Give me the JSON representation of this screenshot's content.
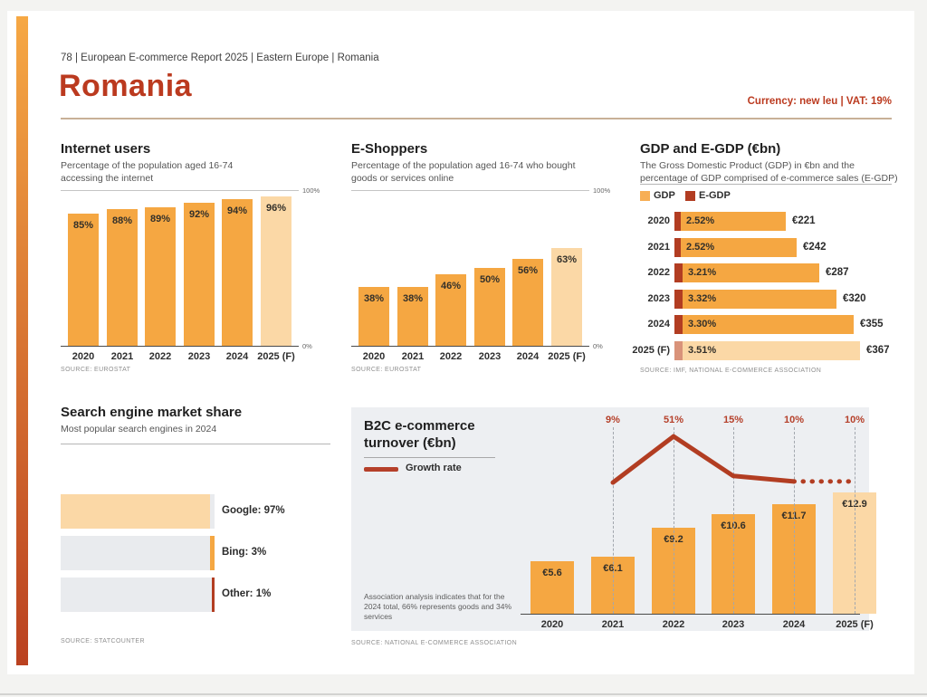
{
  "page": {
    "breadcrumb": "78 | European E-commerce Report 2025 | Eastern Europe | Romania",
    "title": "Romania",
    "currency_vat": "Currency: new leu | VAT: 19%"
  },
  "colors": {
    "accent_orange": "#F5A742",
    "forecast_orange": "#FBD8A6",
    "dark_red": "#B23D22",
    "forecast_red": "#D9937A",
    "panel_bg": "#EDEFF2",
    "gray_bar": "#E9EBEE",
    "title_red": "#BB3A1F"
  },
  "chart_data": [
    {
      "id": "internet_users",
      "type": "bar",
      "title": "Internet users",
      "subtitle": "Percentage of the population aged 16-74 accessing the internet",
      "categories": [
        "2020",
        "2021",
        "2022",
        "2023",
        "2024",
        "2025 (F)"
      ],
      "values": [
        85,
        88,
        89,
        92,
        94,
        96
      ],
      "value_labels": [
        "85%",
        "88%",
        "89%",
        "92%",
        "94%",
        "96%"
      ],
      "ylim": [
        0,
        100
      ],
      "axis_labels": {
        "top": "100%",
        "bottom": "0%"
      },
      "forecast_last": true,
      "grid": false,
      "source": "SOURCE: EUROSTAT"
    },
    {
      "id": "e_shoppers",
      "type": "bar",
      "title": "E-Shoppers",
      "subtitle": "Percentage of the population aged 16-74 who bought goods or services online",
      "categories": [
        "2020",
        "2021",
        "2022",
        "2023",
        "2024",
        "2025 (F)"
      ],
      "values": [
        38,
        38,
        46,
        50,
        56,
        63
      ],
      "value_labels": [
        "38%",
        "38%",
        "46%",
        "50%",
        "56%",
        "63%"
      ],
      "ylim": [
        0,
        100
      ],
      "axis_labels": {
        "top": "100%",
        "bottom": "0%"
      },
      "forecast_last": true,
      "grid": false,
      "source": "SOURCE: EUROSTAT"
    },
    {
      "id": "gdp_egdp",
      "type": "bar",
      "orientation": "horizontal",
      "title": "GDP and E-GDP (€bn)",
      "subtitle": "The Gross Domestic Product (GDP) in €bn and the percentage of GDP comprised of e-commerce sales (E-GDP)",
      "categories": [
        "2020",
        "2021",
        "2022",
        "2023",
        "2024",
        "2025 (F)"
      ],
      "series": [
        {
          "name": "GDP",
          "values": [
            221,
            242,
            287,
            320,
            355,
            367
          ],
          "labels": [
            "€221",
            "€242",
            "€287",
            "€320",
            "€355",
            "€367"
          ]
        },
        {
          "name": "E-GDP",
          "values": [
            2.52,
            2.52,
            3.21,
            3.32,
            3.3,
            3.51
          ],
          "labels": [
            "2.52%",
            "2.52%",
            "3.21%",
            "3.32%",
            "3.30%",
            "3.51%"
          ]
        }
      ],
      "xmax": 367,
      "forecast_last": true,
      "legend_position": "top",
      "source": "SOURCE: IMF, NATIONAL E-COMMERCE ASSOCIATION"
    },
    {
      "id": "search_engine_share",
      "type": "bar",
      "orientation": "horizontal",
      "title": "Search engine market share",
      "subtitle": "Most popular search engines in 2024",
      "categories": [
        "Google",
        "Bing",
        "Other"
      ],
      "values": [
        97,
        3,
        1
      ],
      "labels": [
        "Google: 97%",
        "Bing: 3%",
        "Other: 1%"
      ],
      "xlim": [
        0,
        100
      ],
      "source": "SOURCE: STATCOUNTER"
    },
    {
      "id": "b2c_turnover",
      "type": "bar",
      "title": "B2C e-commerce\nturnover (€bn)",
      "categories": [
        "2020",
        "2021",
        "2022",
        "2023",
        "2024",
        "2025 (F)"
      ],
      "values": [
        5.6,
        6.1,
        9.2,
        10.6,
        11.7,
        12.9
      ],
      "value_labels": [
        "€5.6",
        "€6.1",
        "€9.2",
        "€10.6",
        "€11.7",
        "€12.9"
      ],
      "forecast_last": true,
      "line_series": {
        "name": "Growth rate",
        "x": [
          "2021",
          "2022",
          "2023",
          "2024",
          "2025 (F)"
        ],
        "values": [
          9,
          51,
          15,
          10,
          10
        ],
        "labels": [
          "9%",
          "51%",
          "15%",
          "10%",
          "10%"
        ],
        "last_segment_dotted": true
      },
      "annotation": "Association analysis indicates that for the 2024 total, 66% represents goods and 34% services",
      "source": "SOURCE: NATIONAL E-COMMERCE ASSOCIATION"
    }
  ]
}
